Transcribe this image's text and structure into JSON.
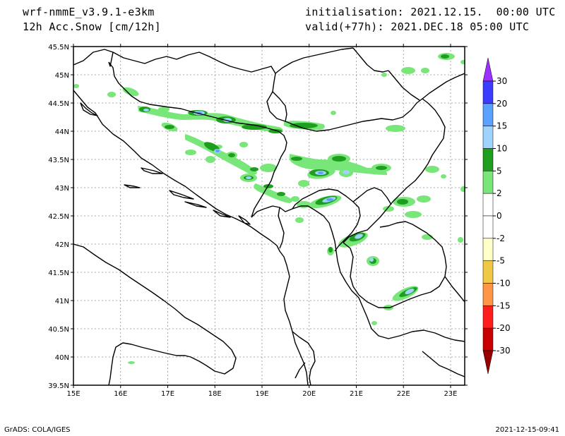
{
  "header": {
    "model": "wrf-nmmE_v3.9.1-e3km",
    "field": "12h Acc.Snow [cm/12h]",
    "init": "initialisation: 2021.12.15.  00:00 UTC",
    "valid": "valid(+77h): 2021.DEC.18 05:00 UTC"
  },
  "footer": {
    "left": "GrADS: COLA/IGES",
    "right": "2021-12-15-09:41"
  },
  "map": {
    "lat_labels": [
      "45.5N",
      "45N",
      "44.5N",
      "44N",
      "43.5N",
      "43N",
      "42.5N",
      "42N",
      "41.5N",
      "41N",
      "40.5N",
      "40N",
      "39.5N"
    ],
    "lon_labels": [
      "15E",
      "16E",
      "17E",
      "18E",
      "19E",
      "20E",
      "21E",
      "22E",
      "23E"
    ],
    "lat_range": [
      39.5,
      45.5
    ],
    "lon_range": [
      15.0,
      23.3
    ],
    "grid": true
  },
  "colorbar": {
    "labels": [
      "30",
      "20",
      "15",
      "10",
      "5",
      "2",
      "0",
      "-2",
      "-5",
      "-10",
      "-15",
      "-20",
      "-30"
    ],
    "colors": [
      "#9b30ff",
      "#3c3cff",
      "#5aa0ff",
      "#a0d2ff",
      "#1e9e1e",
      "#78e678",
      "#ffffff",
      "#ffffff",
      "#ffffc8",
      "#f0c846",
      "#ff9646",
      "#ff1e1e",
      "#c80000",
      "#960000"
    ]
  },
  "colors": {
    "snow_light": "#78e678",
    "snow_mid": "#1e9e1e",
    "snow_high": "#a0d2ff",
    "snow_higher": "#5aa0ff"
  }
}
